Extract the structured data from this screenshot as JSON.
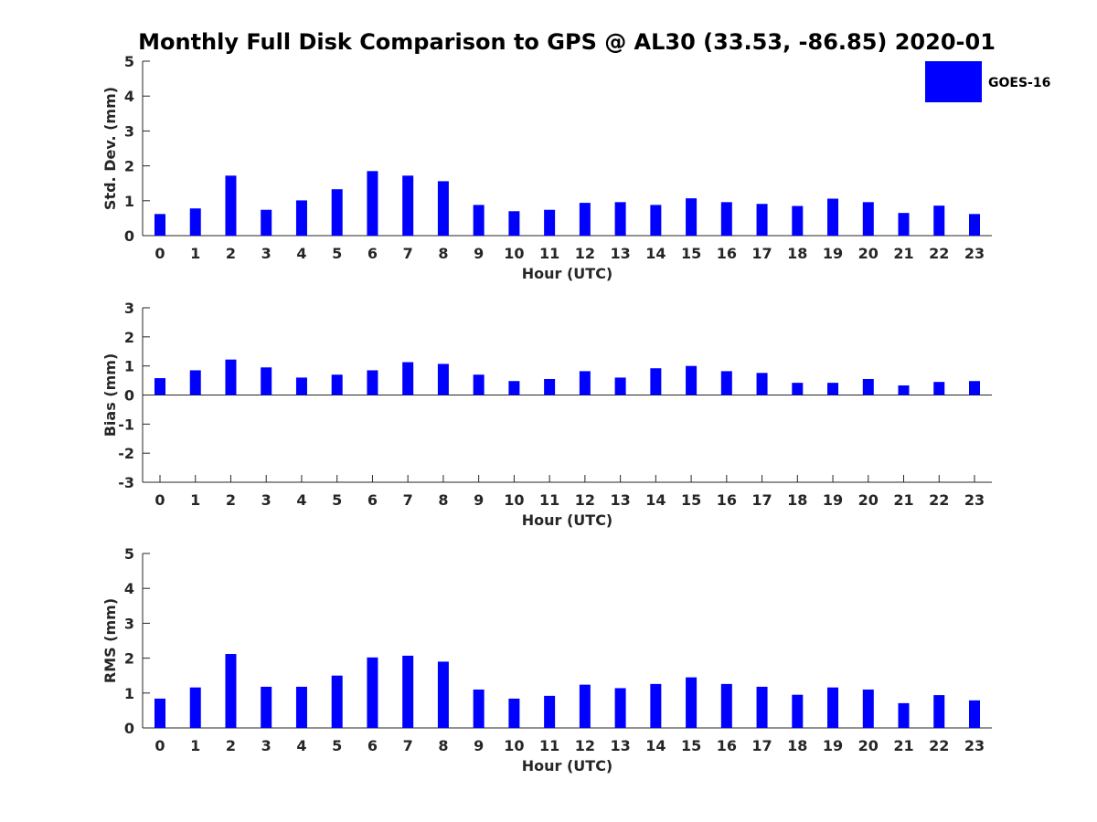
{
  "title": "Monthly Full Disk Comparison to GPS @ AL30 (33.53, -86.85) 2020-01",
  "legend": {
    "label": "GOES-16",
    "color": "#0000ff"
  },
  "chart_data": [
    {
      "type": "bar",
      "ylabel": "Std. Dev. (mm)",
      "xlabel": "Hour (UTC)",
      "ylim": [
        0,
        5
      ],
      "yticks": [
        "0",
        "1",
        "2",
        "3",
        "4",
        "5"
      ],
      "categories": [
        "0",
        "1",
        "2",
        "3",
        "4",
        "5",
        "6",
        "7",
        "8",
        "9",
        "10",
        "11",
        "12",
        "13",
        "14",
        "15",
        "16",
        "17",
        "18",
        "19",
        "20",
        "21",
        "22",
        "23"
      ],
      "series": [
        {
          "name": "GOES-16",
          "values": [
            0.62,
            0.78,
            1.72,
            0.74,
            1.01,
            1.33,
            1.85,
            1.72,
            1.56,
            0.88,
            0.7,
            0.74,
            0.94,
            0.96,
            0.88,
            1.07,
            0.96,
            0.91,
            0.85,
            1.06,
            0.96,
            0.65,
            0.86,
            0.62
          ]
        }
      ]
    },
    {
      "type": "bar",
      "ylabel": "Bias (mm)",
      "xlabel": "Hour (UTC)",
      "ylim": [
        -3,
        3
      ],
      "yticks": [
        "-3",
        "-2",
        "-1",
        "0",
        "1",
        "2",
        "3"
      ],
      "categories": [
        "0",
        "1",
        "2",
        "3",
        "4",
        "5",
        "6",
        "7",
        "8",
        "9",
        "10",
        "11",
        "12",
        "13",
        "14",
        "15",
        "16",
        "17",
        "18",
        "19",
        "20",
        "21",
        "22",
        "23"
      ],
      "series": [
        {
          "name": "GOES-16",
          "values": [
            0.58,
            0.85,
            1.22,
            0.95,
            0.6,
            0.7,
            0.85,
            1.13,
            1.07,
            0.7,
            0.48,
            0.55,
            0.82,
            0.6,
            0.92,
            1.0,
            0.82,
            0.76,
            0.42,
            0.42,
            0.55,
            0.33,
            0.45,
            0.48
          ]
        }
      ]
    },
    {
      "type": "bar",
      "ylabel": "RMS (mm)",
      "xlabel": "Hour (UTC)",
      "ylim": [
        0,
        5
      ],
      "yticks": [
        "0",
        "1",
        "2",
        "3",
        "4",
        "5"
      ],
      "categories": [
        "0",
        "1",
        "2",
        "3",
        "4",
        "5",
        "6",
        "7",
        "8",
        "9",
        "10",
        "11",
        "12",
        "13",
        "14",
        "15",
        "16",
        "17",
        "18",
        "19",
        "20",
        "21",
        "22",
        "23"
      ],
      "series": [
        {
          "name": "GOES-16",
          "values": [
            0.84,
            1.16,
            2.12,
            1.18,
            1.18,
            1.5,
            2.02,
            2.07,
            1.9,
            1.1,
            0.84,
            0.92,
            1.24,
            1.14,
            1.26,
            1.45,
            1.26,
            1.18,
            0.95,
            1.16,
            1.1,
            0.71,
            0.94,
            0.79
          ]
        }
      ]
    }
  ]
}
